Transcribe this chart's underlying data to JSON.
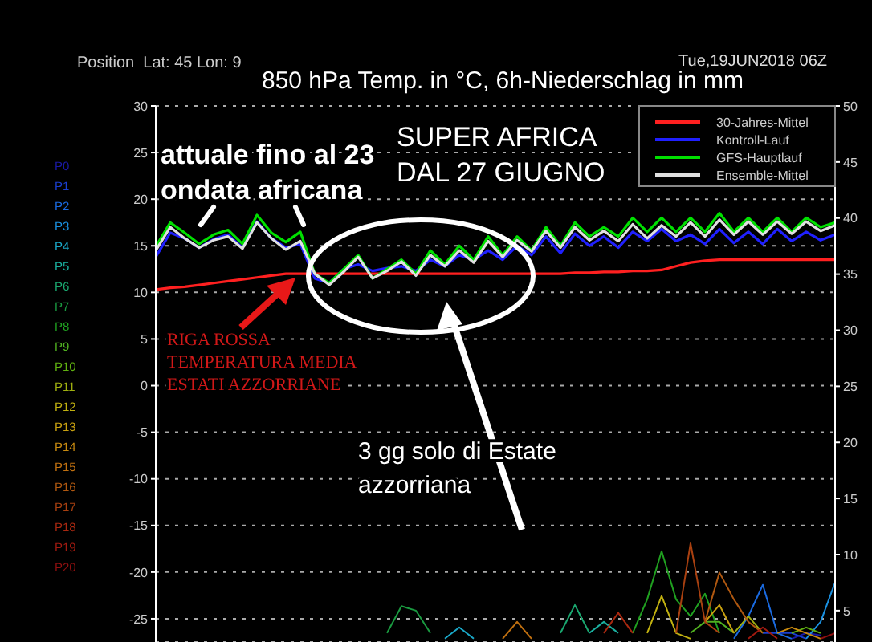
{
  "chart_data": {
    "type": "line",
    "title": "850 hPa Temp. in °C, 6h-Niederschlag in mm",
    "subtitle": "Position  Lat: 45 Lon: 9",
    "annotations": [
      "Tue,19JUN2018 06Z",
      "attuale fino al 23\nondata africana",
      "SUPER AFRICA\nDAL 27 GIUGNO",
      "RIGA ROSSA\nTEMPERATURA MEDIA\nESTATI AZZORRIANE",
      "3 gg solo di Estate\nazzorriana"
    ],
    "categories": [
      null,
      null,
      null,
      null,
      null,
      null,
      null,
      null,
      null,
      null,
      null,
      null,
      null,
      null,
      null,
      null,
      null,
      null,
      null,
      null,
      null,
      null,
      null,
      null,
      null,
      null,
      null,
      null,
      null,
      null,
      null,
      null,
      null,
      null,
      null,
      null,
      null,
      null,
      null,
      null,
      null,
      null,
      null,
      null,
      null,
      null,
      null,
      null
    ],
    "ylim": [
      -27.5,
      30
    ],
    "yticks": [
      30,
      25,
      20,
      15,
      10,
      5,
      0,
      -5,
      -10,
      -15,
      -20,
      -25
    ],
    "y2lim": [
      2.2,
      50
    ],
    "y2ticks": [
      50,
      45,
      40,
      35,
      30,
      25,
      20,
      15,
      10,
      5
    ],
    "grid": true,
    "legend": "top right",
    "marker": "none",
    "series": [
      {
        "name": "P0",
        "color": "#1a1aa8",
        "axis": "y2",
        "values": [
          null,
          null,
          null,
          null,
          null,
          null,
          null,
          null,
          null,
          null,
          null,
          null,
          null,
          null,
          null,
          null,
          null,
          null,
          null,
          null,
          null,
          null,
          null,
          null,
          null,
          null,
          null,
          null,
          null,
          null,
          null,
          null,
          null,
          null,
          null,
          null,
          null,
          null,
          null,
          null,
          null,
          null,
          null,
          null,
          2.5,
          3,
          2.8,
          null
        ]
      },
      {
        "name": "P1",
        "color": "#1a3fd0",
        "axis": "y2",
        "values": [
          null,
          null,
          null,
          null,
          null,
          null,
          null,
          null,
          null,
          null,
          null,
          null,
          null,
          null,
          null,
          null,
          null,
          null,
          null,
          null,
          null,
          null,
          null,
          null,
          null,
          null,
          null,
          null,
          null,
          null,
          null,
          null,
          null,
          null,
          null,
          null,
          null,
          null,
          null,
          null,
          null,
          null,
          3,
          3,
          3,
          2.5,
          null,
          null
        ]
      },
      {
        "name": "P2",
        "color": "#1a6ae0",
        "axis": "y2",
        "values": [
          null,
          null,
          null,
          null,
          null,
          null,
          null,
          null,
          null,
          null,
          null,
          null,
          null,
          null,
          null,
          null,
          null,
          null,
          null,
          null,
          null,
          null,
          null,
          null,
          null,
          null,
          null,
          null,
          null,
          null,
          null,
          null,
          null,
          null,
          null,
          null,
          null,
          null,
          null,
          null,
          2.5,
          4.5,
          7.3,
          3,
          2.5,
          null,
          null,
          null
        ]
      },
      {
        "name": "P3",
        "color": "#1a90e0",
        "axis": "y2",
        "values": [
          null,
          null,
          null,
          null,
          null,
          null,
          null,
          null,
          null,
          null,
          null,
          null,
          null,
          null,
          null,
          null,
          null,
          null,
          null,
          null,
          null,
          null,
          null,
          null,
          null,
          null,
          null,
          null,
          null,
          null,
          null,
          null,
          null,
          null,
          null,
          null,
          null,
          null,
          null,
          null,
          null,
          null,
          null,
          null,
          null,
          2.5,
          4,
          7.5
        ]
      },
      {
        "name": "P4",
        "color": "#1aa8c8",
        "axis": "y2",
        "values": [
          null,
          null,
          null,
          null,
          null,
          null,
          null,
          null,
          null,
          null,
          null,
          null,
          null,
          null,
          null,
          null,
          null,
          null,
          null,
          null,
          2.5,
          3.5,
          2.5,
          null,
          null,
          null,
          null,
          null,
          null,
          null,
          null,
          null,
          null,
          null,
          null,
          null,
          null,
          null,
          null,
          null,
          null,
          null,
          null,
          null,
          null,
          null,
          null,
          null
        ]
      },
      {
        "name": "P5",
        "color": "#1ab0a0",
        "axis": "y2",
        "values": [
          null,
          null,
          null,
          null,
          null,
          null,
          null,
          null,
          null,
          null,
          null,
          null,
          null,
          null,
          null,
          null,
          null,
          null,
          null,
          null,
          null,
          null,
          null,
          null,
          null,
          null,
          null,
          null,
          null,
          null,
          3,
          4,
          3,
          null,
          null,
          null,
          null,
          null,
          null,
          null,
          null,
          null,
          null,
          null,
          null,
          null,
          null,
          null
        ]
      },
      {
        "name": "P6",
        "color": "#1aa870",
        "axis": "y2",
        "values": [
          null,
          null,
          null,
          null,
          null,
          null,
          null,
          null,
          null,
          null,
          null,
          null,
          null,
          null,
          null,
          null,
          null,
          null,
          null,
          null,
          null,
          null,
          null,
          null,
          null,
          null,
          null,
          null,
          3,
          5.5,
          3,
          null,
          null,
          null,
          null,
          null,
          null,
          null,
          null,
          null,
          null,
          null,
          null,
          null,
          null,
          null,
          null,
          null
        ]
      },
      {
        "name": "P7",
        "color": "#1a9a40",
        "axis": "y2",
        "values": [
          null,
          null,
          null,
          null,
          null,
          null,
          null,
          null,
          null,
          null,
          null,
          null,
          null,
          null,
          null,
          null,
          3,
          5.4,
          5,
          3,
          null,
          null,
          null,
          null,
          null,
          null,
          null,
          null,
          null,
          null,
          null,
          null,
          null,
          null,
          null,
          null,
          null,
          null,
          null,
          null,
          null,
          null,
          null,
          null,
          null,
          null,
          null,
          null
        ]
      },
      {
        "name": "P8",
        "color": "#20a020",
        "axis": "y2",
        "values": [
          null,
          null,
          null,
          null,
          null,
          null,
          null,
          null,
          null,
          null,
          null,
          null,
          null,
          null,
          null,
          null,
          null,
          null,
          null,
          null,
          null,
          null,
          null,
          null,
          null,
          null,
          null,
          null,
          null,
          null,
          null,
          null,
          null,
          3,
          6,
          10.3,
          6,
          4.5,
          6.5,
          3,
          null,
          null,
          null,
          null,
          null,
          null,
          null,
          null
        ]
      },
      {
        "name": "P9",
        "color": "#50b020",
        "axis": "y2",
        "values": [
          null,
          null,
          null,
          null,
          null,
          null,
          null,
          null,
          null,
          null,
          null,
          null,
          null,
          null,
          null,
          null,
          null,
          null,
          null,
          null,
          null,
          null,
          null,
          null,
          null,
          null,
          null,
          null,
          null,
          null,
          null,
          null,
          null,
          null,
          null,
          null,
          null,
          3,
          4,
          4,
          3,
          null,
          null,
          null,
          null,
          null,
          null,
          null
        ]
      },
      {
        "name": "P10",
        "color": "#60b010",
        "axis": "y2",
        "values": [
          null,
          null,
          null,
          null,
          null,
          null,
          null,
          null,
          null,
          null,
          null,
          null,
          null,
          null,
          null,
          null,
          null,
          null,
          null,
          null,
          null,
          null,
          null,
          null,
          null,
          null,
          null,
          null,
          null,
          null,
          null,
          null,
          null,
          null,
          null,
          null,
          null,
          null,
          null,
          null,
          null,
          null,
          null,
          null,
          3,
          3.5,
          3,
          null
        ]
      },
      {
        "name": "P11",
        "color": "#a0b010",
        "axis": "y2",
        "values": [
          null,
          null,
          null,
          null,
          null,
          null,
          null,
          null,
          null,
          null,
          null,
          null,
          null,
          null,
          null,
          null,
          null,
          null,
          null,
          null,
          null,
          null,
          null,
          null,
          null,
          null,
          null,
          null,
          null,
          null,
          null,
          null,
          null,
          null,
          null,
          null,
          null,
          null,
          null,
          null,
          3,
          4.5,
          3,
          null,
          null,
          null,
          null,
          null
        ]
      },
      {
        "name": "P12",
        "color": "#c0b010",
        "axis": "y2",
        "values": [
          null,
          null,
          null,
          null,
          null,
          null,
          null,
          null,
          null,
          null,
          null,
          null,
          null,
          null,
          null,
          null,
          null,
          null,
          null,
          null,
          null,
          null,
          null,
          null,
          null,
          null,
          null,
          null,
          null,
          null,
          null,
          null,
          null,
          null,
          3,
          6.3,
          3,
          2.5,
          null,
          null,
          null,
          null,
          null,
          null,
          null,
          null,
          null,
          null
        ]
      },
      {
        "name": "P13",
        "color": "#c8a010",
        "axis": "y2",
        "values": [
          null,
          null,
          null,
          null,
          null,
          null,
          null,
          null,
          null,
          null,
          null,
          null,
          null,
          null,
          null,
          null,
          null,
          null,
          null,
          null,
          null,
          null,
          null,
          null,
          null,
          null,
          null,
          null,
          null,
          null,
          null,
          null,
          null,
          null,
          null,
          null,
          null,
          null,
          4,
          5.5,
          3,
          null,
          null,
          null,
          null,
          null,
          null,
          null
        ]
      },
      {
        "name": "P14",
        "color": "#c88a10",
        "axis": "y2",
        "values": [
          null,
          null,
          null,
          null,
          null,
          null,
          null,
          null,
          null,
          null,
          null,
          null,
          null,
          null,
          null,
          null,
          null,
          null,
          null,
          null,
          null,
          null,
          null,
          null,
          null,
          null,
          null,
          null,
          null,
          null,
          null,
          null,
          null,
          null,
          null,
          null,
          null,
          null,
          null,
          null,
          null,
          null,
          null,
          3,
          3.5,
          3,
          2.5,
          null
        ]
      },
      {
        "name": "P15",
        "color": "#c07010",
        "axis": "y2",
        "values": [
          null,
          null,
          null,
          null,
          null,
          null,
          null,
          null,
          null,
          null,
          null,
          null,
          null,
          null,
          null,
          null,
          null,
          null,
          null,
          null,
          null,
          null,
          null,
          null,
          2.5,
          4,
          2.5,
          null,
          null,
          null,
          null,
          null,
          null,
          null,
          null,
          null,
          null,
          null,
          null,
          null,
          null,
          null,
          null,
          null,
          null,
          null,
          null,
          null
        ]
      },
      {
        "name": "P16",
        "color": "#b05810",
        "axis": "y2",
        "values": [
          null,
          null,
          null,
          null,
          null,
          null,
          null,
          null,
          null,
          null,
          null,
          null,
          null,
          null,
          null,
          null,
          null,
          null,
          null,
          null,
          null,
          null,
          null,
          null,
          null,
          null,
          null,
          null,
          null,
          null,
          null,
          null,
          null,
          null,
          null,
          null,
          null,
          null,
          4,
          8.4,
          6,
          4,
          3,
          null,
          null,
          null,
          null,
          null
        ]
      },
      {
        "name": "P17",
        "color": "#a84010",
        "axis": "y2",
        "values": [
          null,
          null,
          null,
          null,
          null,
          null,
          null,
          null,
          null,
          null,
          null,
          null,
          null,
          null,
          null,
          null,
          null,
          null,
          null,
          null,
          null,
          null,
          null,
          null,
          null,
          null,
          null,
          null,
          null,
          null,
          null,
          null,
          null,
          null,
          null,
          null,
          3,
          11,
          4,
          3,
          null,
          null,
          null,
          null,
          null,
          null,
          null,
          null
        ]
      },
      {
        "name": "P18",
        "color": "#a82810",
        "axis": "y2",
        "values": [
          null,
          null,
          null,
          null,
          null,
          null,
          null,
          null,
          null,
          null,
          null,
          null,
          null,
          null,
          null,
          null,
          null,
          null,
          null,
          null,
          null,
          null,
          null,
          null,
          null,
          null,
          null,
          null,
          null,
          null,
          null,
          3,
          4.8,
          3,
          null,
          null,
          null,
          null,
          null,
          null,
          null,
          null,
          null,
          null,
          null,
          null,
          null,
          null
        ]
      },
      {
        "name": "P19",
        "color": "#a01a10",
        "axis": "y2",
        "values": [
          null,
          null,
          null,
          null,
          null,
          null,
          null,
          null,
          null,
          null,
          null,
          null,
          null,
          null,
          null,
          null,
          null,
          null,
          null,
          null,
          null,
          null,
          null,
          null,
          null,
          null,
          null,
          null,
          null,
          null,
          null,
          null,
          null,
          null,
          null,
          null,
          null,
          null,
          null,
          null,
          null,
          2.5,
          3.5,
          2.5,
          null,
          null,
          null,
          null
        ]
      },
      {
        "name": "P20",
        "color": "#901010",
        "axis": "y2",
        "values": [
          null,
          null,
          null,
          null,
          null,
          null,
          null,
          null,
          null,
          null,
          null,
          null,
          null,
          null,
          null,
          null,
          null,
          null,
          null,
          null,
          null,
          null,
          null,
          null,
          null,
          null,
          null,
          null,
          null,
          null,
          null,
          null,
          null,
          null,
          null,
          null,
          null,
          null,
          null,
          null,
          null,
          null,
          null,
          null,
          null,
          null,
          2.5,
          3
        ]
      },
      {
        "name": "30-Jahres-Mittel",
        "color": "#ff2020",
        "values": [
          10.3,
          10.5,
          10.6,
          10.8,
          11,
          11.2,
          11.4,
          11.6,
          11.8,
          12,
          12,
          12,
          12,
          12,
          12,
          12,
          12,
          12,
          12,
          12,
          12,
          12,
          12,
          12,
          12,
          12,
          12,
          12,
          12,
          12.1,
          12.1,
          12.2,
          12.2,
          12.3,
          12.3,
          12.4,
          12.8,
          13.2,
          13.4,
          13.5,
          13.5,
          13.5,
          13.5,
          13.5,
          13.5,
          13.5,
          13.5,
          13.5
        ]
      },
      {
        "name": "Kontroll-Lauf",
        "color": "#2020ff",
        "values": [
          13.8,
          16.4,
          15.8,
          14.8,
          15.7,
          16.2,
          14.8,
          17.6,
          15.8,
          14.8,
          15.2,
          11.5,
          11,
          12.5,
          13,
          12.3,
          12.6,
          12.8,
          12.3,
          13.5,
          12.8,
          14,
          13.5,
          14.5,
          13.5,
          15,
          14,
          16,
          14.2,
          16.3,
          15,
          16,
          14.8,
          16.5,
          15.5,
          16.8,
          15.5,
          16.2,
          15.2,
          16.8,
          15.3,
          16.5,
          15.2,
          16.8,
          15.5,
          16.5,
          15.6,
          16.2
        ]
      },
      {
        "name": "GFS-Hauptlauf",
        "color": "#00e000",
        "values": [
          14.9,
          17.5,
          16.4,
          15.2,
          16.2,
          16.7,
          15.2,
          18.3,
          16.4,
          15.4,
          16.5,
          12,
          11,
          12.5,
          14,
          11.5,
          12.5,
          13.5,
          12,
          14.5,
          13,
          15,
          13.5,
          16,
          14,
          16,
          14.5,
          17,
          15,
          17.5,
          16,
          17,
          16,
          18,
          16.5,
          18,
          16.5,
          18,
          16.5,
          18.5,
          16.5,
          18,
          16.5,
          18,
          16.5,
          18,
          17,
          17.5
        ]
      },
      {
        "name": "Ensemble-Mittel",
        "color": "#e0e0e0",
        "values": [
          14.5,
          17,
          15.8,
          14.8,
          15.6,
          16,
          14.7,
          17.5,
          15.8,
          14.6,
          15.5,
          12,
          10.8,
          12.2,
          13.8,
          11.5,
          12.3,
          13.3,
          11.8,
          14,
          12.8,
          14.5,
          13.2,
          15.5,
          13.8,
          15.6,
          14.4,
          16.6,
          14.8,
          17,
          15.6,
          16.6,
          15.5,
          17.3,
          15.8,
          17.2,
          16,
          17.5,
          16,
          17.8,
          16.2,
          17.6,
          16.2,
          17.6,
          16.3,
          17.6,
          16.6,
          17.2
        ]
      }
    ]
  }
}
